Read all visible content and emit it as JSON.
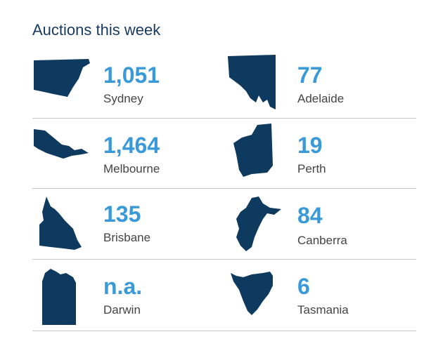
{
  "title": "Auctions this week",
  "colors": {
    "map": "#0f3a5f",
    "value": "#3a9ad9",
    "city": "#444444",
    "title": "#173a5e",
    "rule": "#c8c8c8"
  },
  "cities": [
    {
      "name": "Sydney",
      "value": "1,051",
      "icon": "nsw-map-icon"
    },
    {
      "name": "Adelaide",
      "value": "77",
      "icon": "sa-map-icon"
    },
    {
      "name": "Melbourne",
      "value": "1,464",
      "icon": "vic-map-icon"
    },
    {
      "name": "Perth",
      "value": "19",
      "icon": "wa-map-icon"
    },
    {
      "name": "Brisbane",
      "value": "135",
      "icon": "qld-map-icon"
    },
    {
      "name": "Canberra",
      "value": "84",
      "icon": "act-map-icon"
    },
    {
      "name": "Darwin",
      "value": "n.a.",
      "icon": "nt-map-icon"
    },
    {
      "name": "Tasmania",
      "value": "6",
      "icon": "tas-map-icon"
    }
  ]
}
